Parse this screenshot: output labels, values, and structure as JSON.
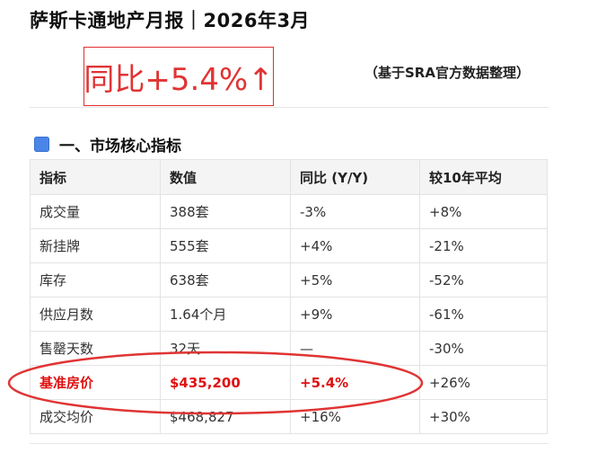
{
  "header": {
    "title": "萨斯卡通地产月报｜2026年3月",
    "yoy_badge": "同比+5.4%↑",
    "source_note": "（基于SRA官方数据整理）"
  },
  "section1": {
    "heading": "一、市场核心指标"
  },
  "table": {
    "columns": [
      "指标",
      "数值",
      "同比 (Y/Y)",
      "较10年平均"
    ],
    "rows": [
      [
        "成交量",
        "388套",
        "-3%",
        "+8%"
      ],
      [
        "新挂牌",
        "555套",
        "+4%",
        "-21%"
      ],
      [
        "库存",
        "638套",
        "+5%",
        "-52%"
      ],
      [
        "供应月数",
        "1.64个月",
        "+9%",
        "-61%"
      ],
      [
        "售罄天数",
        "32天",
        "—",
        "-30%"
      ],
      [
        "基准房价",
        "$435,200",
        "+5.4%",
        "+26%"
      ],
      [
        "成交均价",
        "$468,827",
        "+16%",
        "+30%"
      ]
    ]
  },
  "colors": {
    "accent_red": "#e03434",
    "section_square": "#4a86e8",
    "header_bg": "#f4f4f4"
  }
}
